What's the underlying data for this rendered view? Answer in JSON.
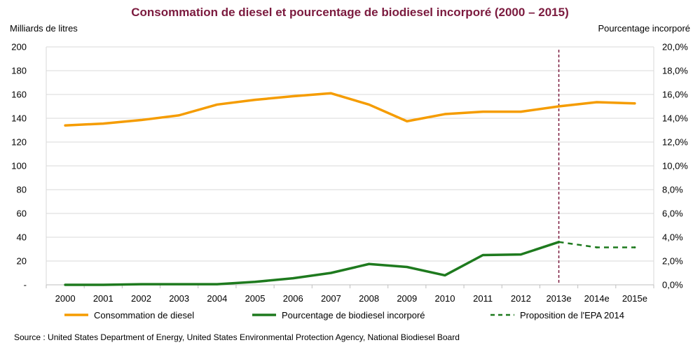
{
  "chart_data": {
    "type": "line",
    "title": "Consommation de diesel et pourcentage de biodiesel incorporé (2000 – 2015)",
    "y_left_label": "Milliards de litres",
    "y_right_label": "Pourcentage incorporé",
    "categories": [
      "2000",
      "2001",
      "2002",
      "2003",
      "2004",
      "2005",
      "2006",
      "2007",
      "2008",
      "2009",
      "2010",
      "2011",
      "2012",
      "2013e",
      "2014e",
      "2015e"
    ],
    "y_left_ticks": [
      "-",
      "20",
      "40",
      "60",
      "80",
      "100",
      "120",
      "140",
      "160",
      "180",
      "200"
    ],
    "y_right_ticks": [
      "0,0%",
      "2,0%",
      "4,0%",
      "6,0%",
      "8,0%",
      "10,0%",
      "12,0%",
      "14,0%",
      "16,0%",
      "18,0%",
      "20,0%"
    ],
    "y_left_range": [
      0,
      200
    ],
    "y_right_range": [
      0,
      20
    ],
    "grid": true,
    "legend_position": "bottom",
    "series": [
      {
        "name": "Consommation de diesel",
        "axis": "left",
        "color": "#f59c00",
        "style": "solid",
        "values": [
          134,
          135.5,
          138.5,
          142.5,
          151.5,
          155.5,
          158.5,
          161,
          151.5,
          137.5,
          143.5,
          145.5,
          145.5,
          150,
          153.5,
          152.5
        ]
      },
      {
        "name": "Pourcentage de biodiesel incorporé",
        "axis": "right",
        "color": "#1e7a1e",
        "style": "solid",
        "values": [
          0,
          0,
          0.05,
          0.05,
          0.05,
          0.25,
          0.55,
          1.0,
          1.75,
          1.5,
          0.8,
          2.5,
          2.55,
          3.6,
          null,
          null
        ]
      },
      {
        "name": "Proposition de l'EPA 2014",
        "axis": "right",
        "color": "#1e7a1e",
        "style": "dashed",
        "values": [
          null,
          null,
          null,
          null,
          null,
          null,
          null,
          null,
          null,
          null,
          null,
          null,
          null,
          3.6,
          3.15,
          3.15
        ]
      }
    ],
    "vertical_marker_at": "2013e",
    "marker_color": "#7b1a3e"
  },
  "source": "Source : United States Department of Energy, United States Environmental Protection Agency, National Biodiesel Board"
}
